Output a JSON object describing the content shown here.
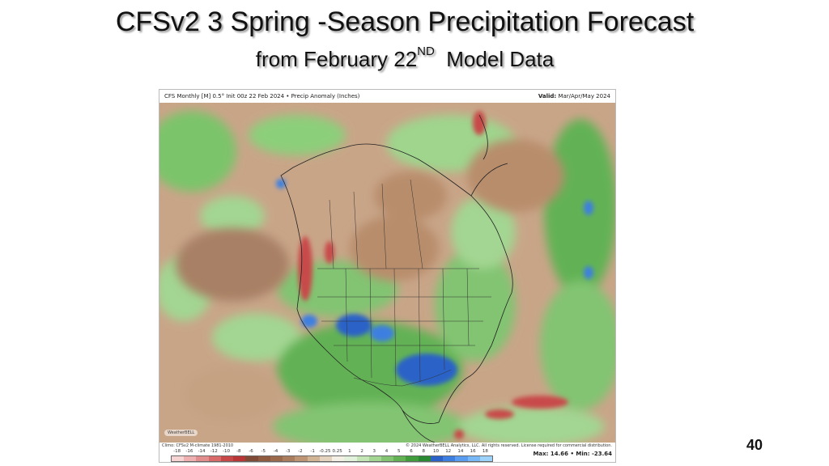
{
  "slide": {
    "title": "CFSv2  3 Spring -Season Precipitation Forecast",
    "subtitle_main": "from February 22",
    "subtitle_sup": "ND",
    "subtitle_tail": "  Model Data",
    "page_number": "40"
  },
  "map": {
    "header_left": "CFS Monthly [M] 0.5° Init 00z 22 Feb 2024 • Precip Anomaly (Inches)",
    "header_right_label": "Valid:",
    "header_right_value": "Mar/Apr/May 2024",
    "footer_clim": "Climo: CFSv2 M-climate 1981-2010",
    "copyright": "© 2024 WeatherBELL Analytics, LLC. All rights reserved. License required for commercial distribution.",
    "maxmin": "Max: 14.66 • Min: -23.64",
    "logo_text": "WeatherBELL",
    "colorbar_ticks": [
      "-18",
      "-16",
      "-14",
      "-12",
      "-10",
      "-8",
      "-6",
      "-5",
      "-4",
      "-3",
      "-2",
      "-1",
      "-0.25",
      "0.25",
      "1",
      "2",
      "3",
      "4",
      "5",
      "6",
      "8",
      "10",
      "12",
      "14",
      "16",
      "18"
    ],
    "colorbar_colors": [
      "#f7d4d4",
      "#eeb0b0",
      "#e38e8e",
      "#d86a6a",
      "#c84848",
      "#b83636",
      "#7f4a36",
      "#8e5a40",
      "#9b6a4c",
      "#aa7d5e",
      "#bd9574",
      "#d1b494",
      "#e4d3be",
      "#f5f0e6",
      "#e3f2dc",
      "#c4e5b6",
      "#a3d692",
      "#82c472",
      "#62b254",
      "#419c3c",
      "#2a8a33",
      "#2b62c8",
      "#3d7fe0",
      "#5a9cf0",
      "#79b8f6",
      "#9dd3fb"
    ],
    "legend_colors": {
      "wet": "#419c3c",
      "very_wet": "#2b62c8",
      "dry": "#aa7d5e",
      "very_dry": "#c84848"
    }
  }
}
